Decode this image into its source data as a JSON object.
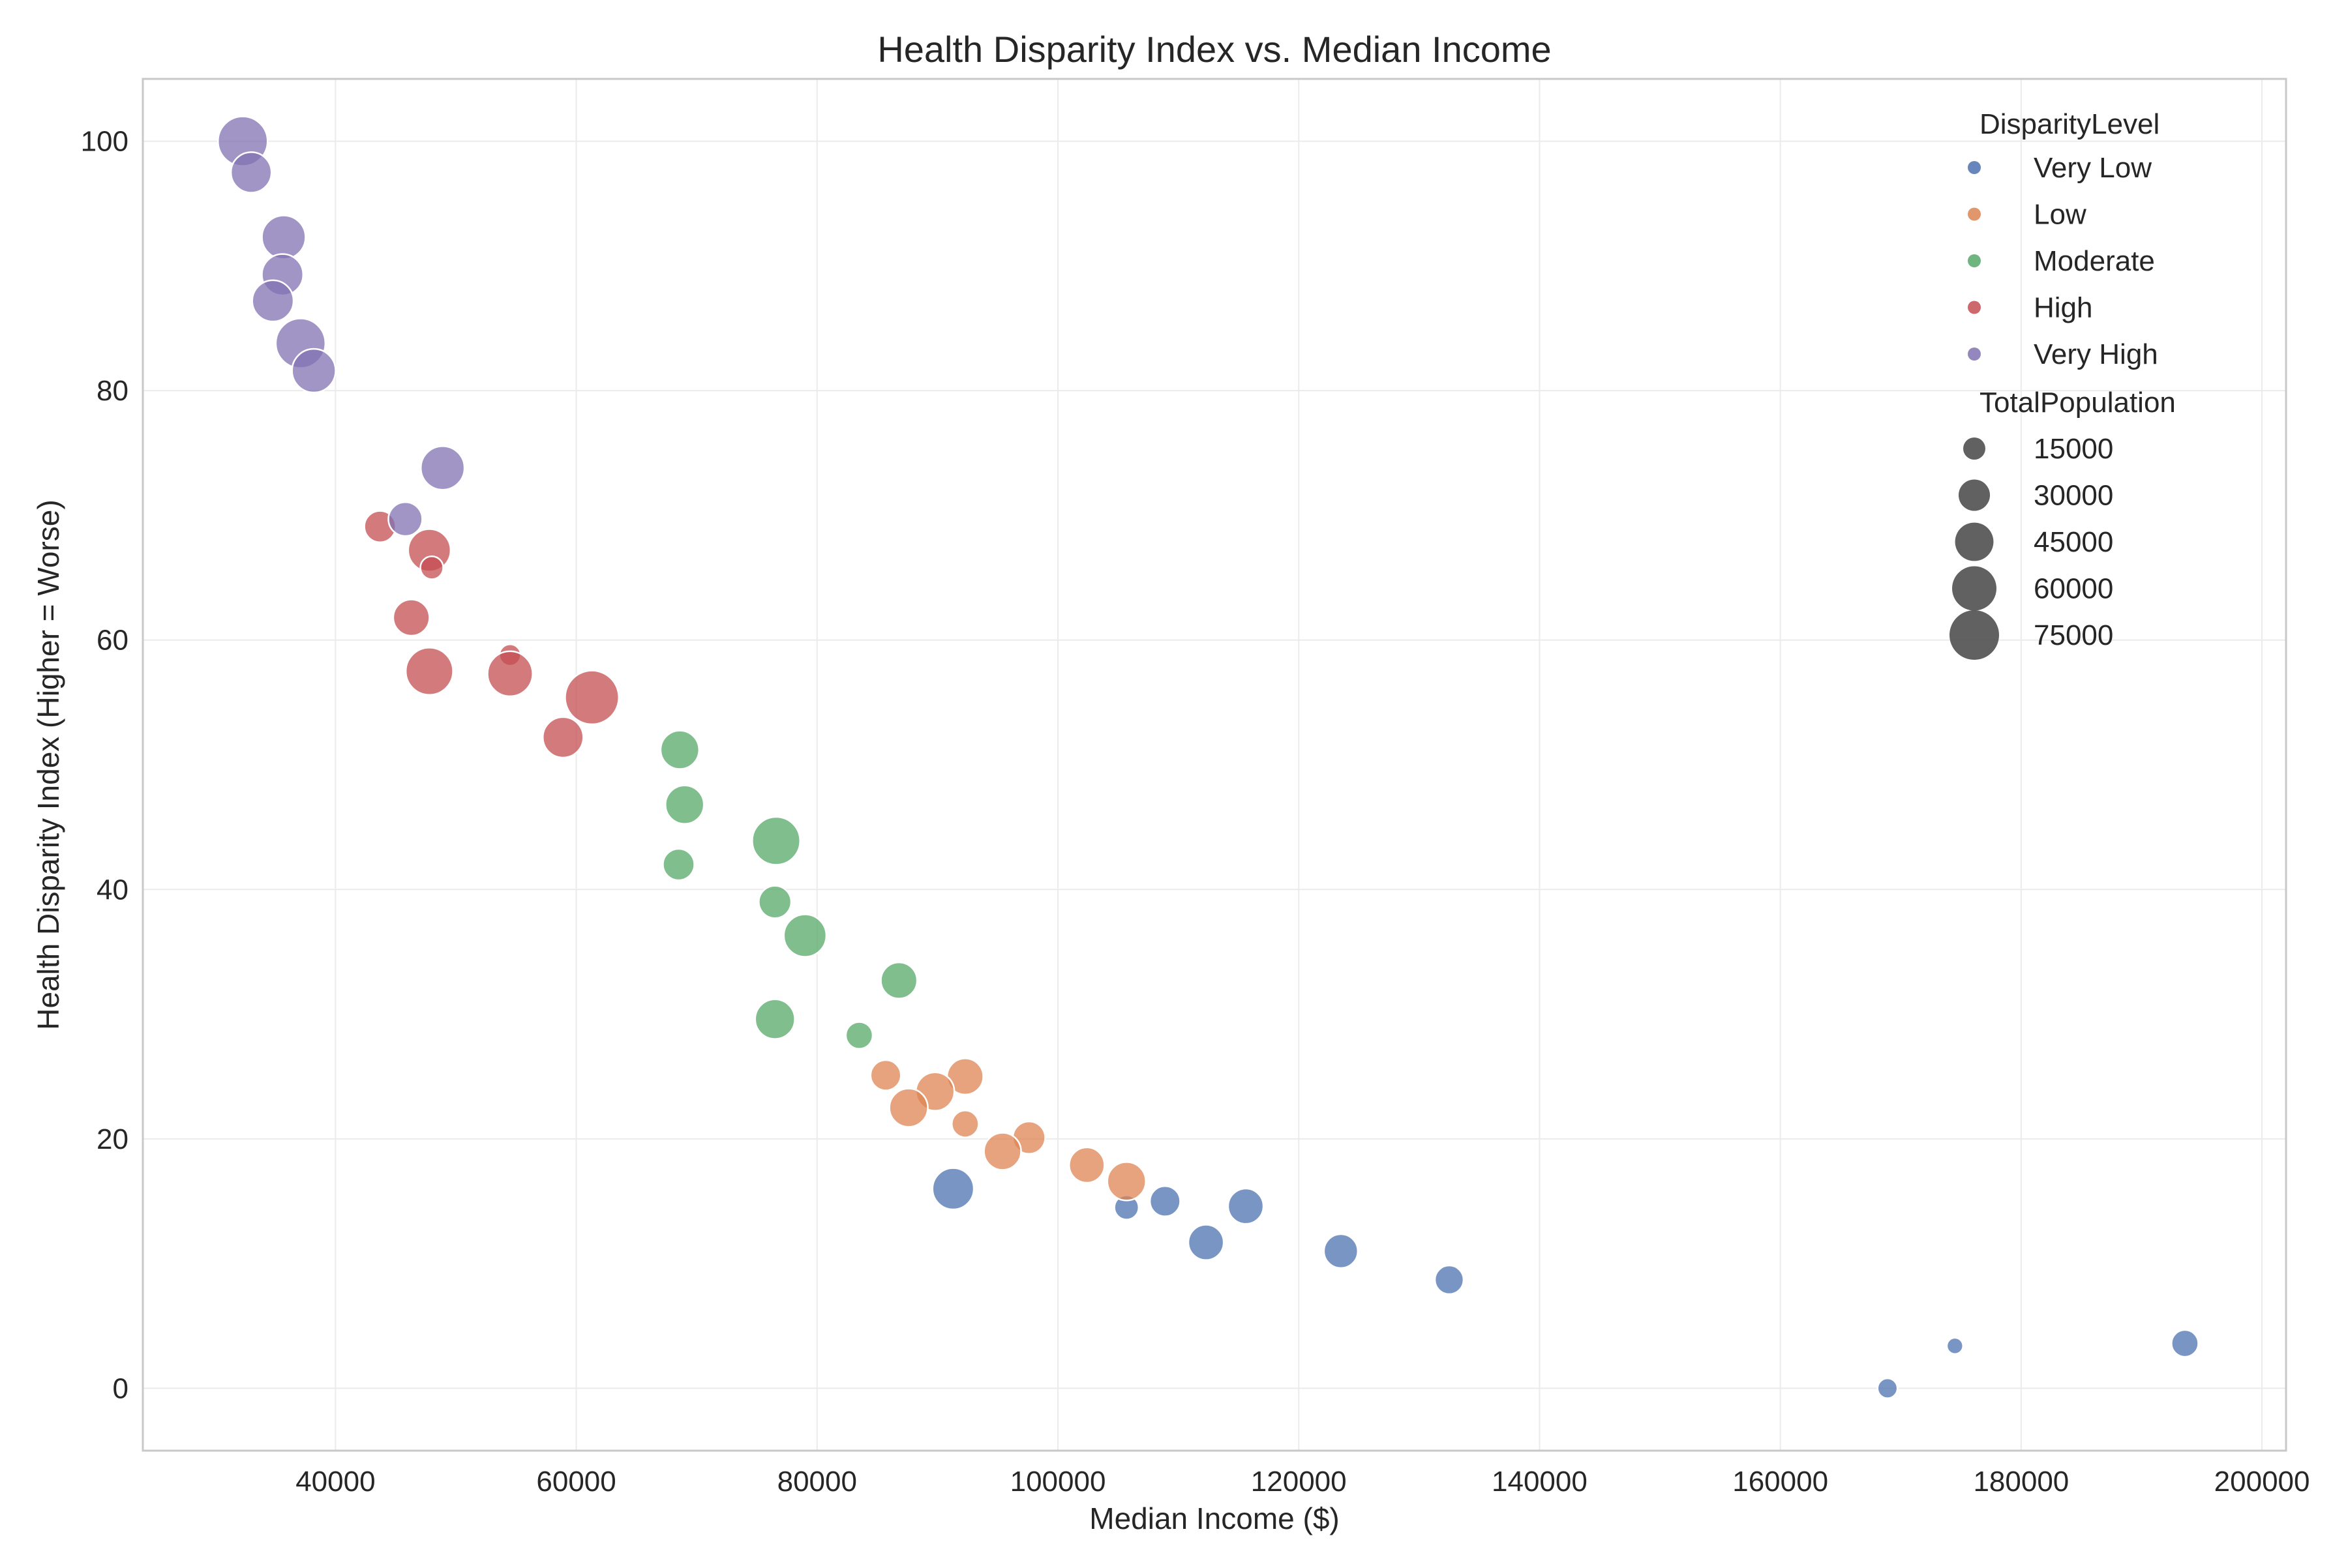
{
  "chart_data": {
    "type": "scatter",
    "title": "Health Disparity Index vs. Median Income",
    "xlabel": "Median Income ($)",
    "ylabel": "Health Disparity Index (Higher = Worse)",
    "xlim": [
      24000,
      202000
    ],
    "ylim": [
      -5,
      105
    ],
    "xticks": [
      40000,
      60000,
      80000,
      100000,
      120000,
      140000,
      160000,
      180000,
      200000
    ],
    "yticks": [
      0,
      20,
      40,
      60,
      80,
      100
    ],
    "grid": true,
    "legend_position": "top-right",
    "hue_title": "DisparityLevel",
    "size_title": "TotalPopulation",
    "size_levels": [
      15000,
      30000,
      45000,
      60000,
      75000
    ],
    "series": [
      {
        "name": "Very Low",
        "color": "#4C72B0",
        "points": [
          {
            "x": 91300,
            "y": 16.0,
            "size": 52000
          },
          {
            "x": 105700,
            "y": 14.5,
            "size": 18000
          },
          {
            "x": 108900,
            "y": 15.0,
            "size": 28000
          },
          {
            "x": 115600,
            "y": 14.6,
            "size": 38000
          },
          {
            "x": 112300,
            "y": 11.7,
            "size": 38000
          },
          {
            "x": 123500,
            "y": 11.0,
            "size": 35000
          },
          {
            "x": 132500,
            "y": 8.7,
            "size": 25000
          },
          {
            "x": 168900,
            "y": 0.0,
            "size": 12000
          },
          {
            "x": 174500,
            "y": 3.4,
            "size": 8000
          },
          {
            "x": 193600,
            "y": 3.6,
            "size": 22000
          }
        ]
      },
      {
        "name": "Low",
        "color": "#DD8452",
        "points": [
          {
            "x": 85700,
            "y": 25.1,
            "size": 28000
          },
          {
            "x": 92300,
            "y": 25.0,
            "size": 40000
          },
          {
            "x": 89800,
            "y": 23.8,
            "size": 45000
          },
          {
            "x": 87600,
            "y": 22.5,
            "size": 45000
          },
          {
            "x": 92300,
            "y": 21.2,
            "size": 22000
          },
          {
            "x": 97600,
            "y": 20.1,
            "size": 32000
          },
          {
            "x": 95400,
            "y": 19.0,
            "size": 42000
          },
          {
            "x": 102400,
            "y": 17.9,
            "size": 38000
          },
          {
            "x": 105700,
            "y": 16.6,
            "size": 45000
          }
        ]
      },
      {
        "name": "Moderate",
        "color": "#55A868",
        "points": [
          {
            "x": 68600,
            "y": 51.2,
            "size": 45000
          },
          {
            "x": 69000,
            "y": 46.8,
            "size": 45000
          },
          {
            "x": 76600,
            "y": 43.9,
            "size": 70000
          },
          {
            "x": 68500,
            "y": 42.0,
            "size": 30000
          },
          {
            "x": 76500,
            "y": 39.0,
            "size": 32000
          },
          {
            "x": 79000,
            "y": 36.3,
            "size": 55000
          },
          {
            "x": 86800,
            "y": 32.7,
            "size": 40000
          },
          {
            "x": 76500,
            "y": 29.6,
            "size": 48000
          },
          {
            "x": 83500,
            "y": 28.3,
            "size": 22000
          }
        ]
      },
      {
        "name": "High",
        "color": "#C44E52",
        "points": [
          {
            "x": 43700,
            "y": 69.1,
            "size": 30000
          },
          {
            "x": 47800,
            "y": 67.2,
            "size": 55000
          },
          {
            "x": 48000,
            "y": 65.8,
            "size": 16000
          },
          {
            "x": 46300,
            "y": 61.8,
            "size": 40000
          },
          {
            "x": 54500,
            "y": 58.8,
            "size": 14000
          },
          {
            "x": 47800,
            "y": 57.5,
            "size": 68000
          },
          {
            "x": 54500,
            "y": 57.3,
            "size": 62000
          },
          {
            "x": 61300,
            "y": 55.4,
            "size": 88000
          },
          {
            "x": 58900,
            "y": 52.2,
            "size": 50000
          }
        ]
      },
      {
        "name": "Very High",
        "color": "#8172B3",
        "points": [
          {
            "x": 32300,
            "y": 100.0,
            "size": 75000
          },
          {
            "x": 33000,
            "y": 97.5,
            "size": 50000
          },
          {
            "x": 35700,
            "y": 92.3,
            "size": 58000
          },
          {
            "x": 35600,
            "y": 89.3,
            "size": 52000
          },
          {
            "x": 34800,
            "y": 87.2,
            "size": 52000
          },
          {
            "x": 37100,
            "y": 83.8,
            "size": 75000
          },
          {
            "x": 38200,
            "y": 81.6,
            "size": 58000
          },
          {
            "x": 48900,
            "y": 73.8,
            "size": 58000
          },
          {
            "x": 45800,
            "y": 69.7,
            "size": 35000
          }
        ]
      }
    ]
  }
}
